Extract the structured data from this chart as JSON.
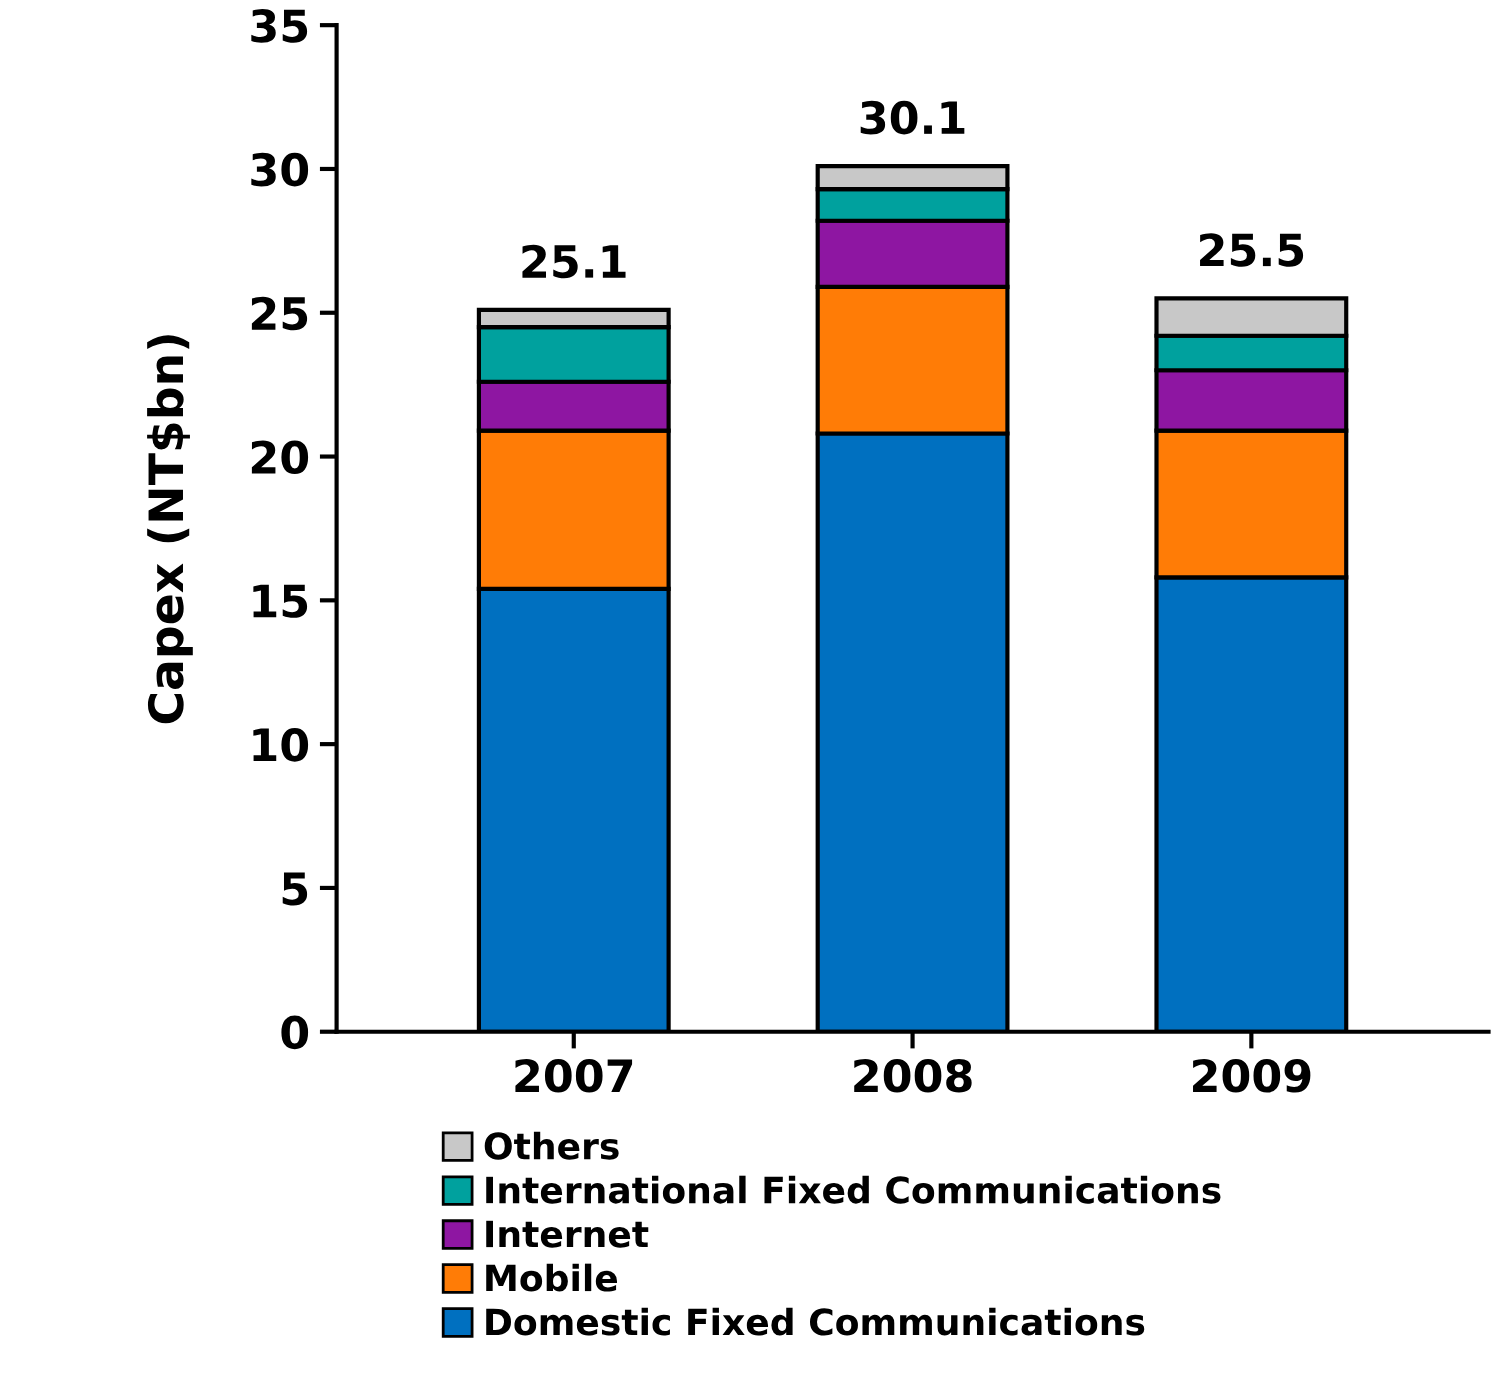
{
  "chart_data": {
    "type": "bar",
    "stacked": true,
    "ylabel": "Capex (NT$bn)",
    "categories": [
      "2007",
      "2008",
      "2009"
    ],
    "series": [
      {
        "name": "Domestic Fixed Communications",
        "color": "#0070c0",
        "values": [
          15.4,
          20.8,
          15.8
        ]
      },
      {
        "name": "Mobile",
        "color": "#ff7c06",
        "values": [
          5.5,
          5.1,
          5.1
        ]
      },
      {
        "name": "Internet",
        "color": "#8e16a2",
        "values": [
          1.7,
          2.3,
          2.1
        ]
      },
      {
        "name": "International Fixed Communications",
        "color": "#00a19e",
        "values": [
          1.9,
          1.1,
          1.2
        ]
      },
      {
        "name": "Others",
        "color": "#c8c8c8",
        "values": [
          0.6,
          0.8,
          1.3
        ]
      }
    ],
    "totals": [
      "25.1",
      "30.1",
      "25.5"
    ],
    "ylim": [
      0,
      35
    ],
    "yticks": [
      0,
      5,
      10,
      15,
      20,
      25,
      30,
      35
    ],
    "grid": false,
    "legend": "bottom"
  }
}
